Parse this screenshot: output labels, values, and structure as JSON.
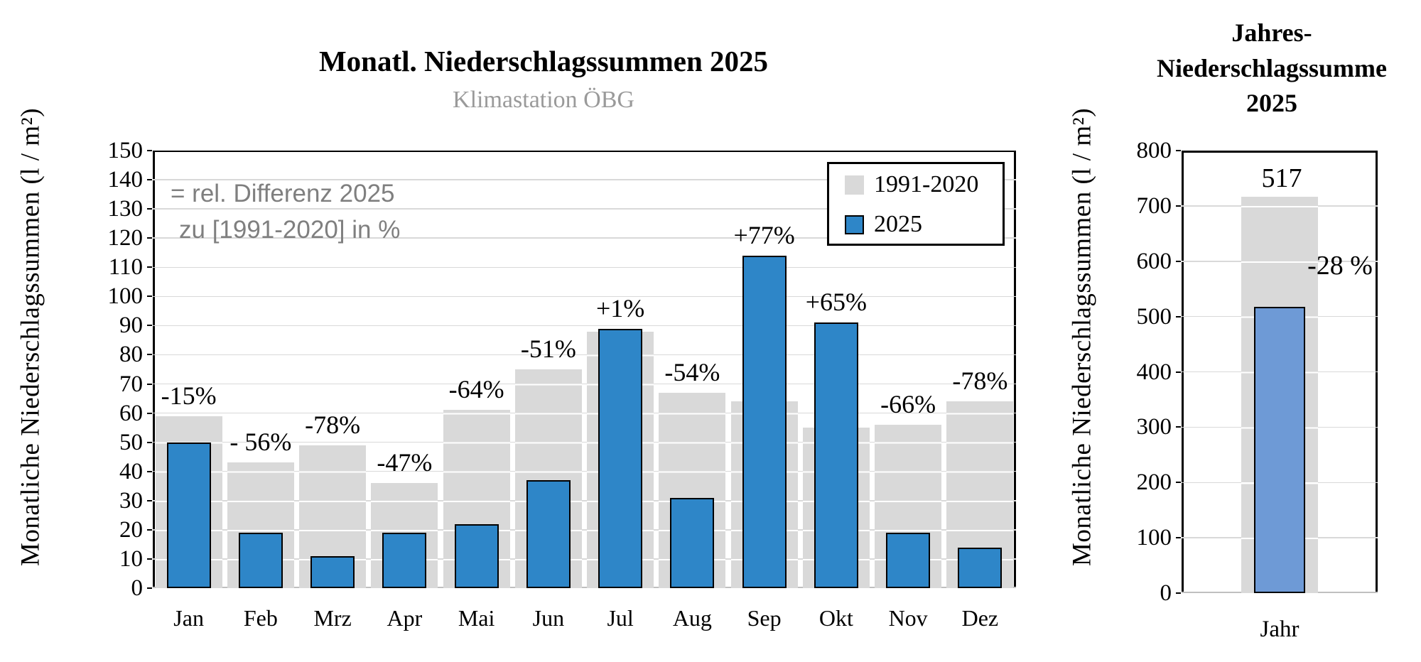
{
  "chart_data": [
    {
      "type": "bar",
      "title": "Monatl. Niederschlagssummen 2025",
      "subtitle": "Klimastation ÖBG",
      "ylabel": "Monatliche Niederschlagssummen  (l / m²)",
      "categories": [
        "Jan",
        "Feb",
        "Mrz",
        "Apr",
        "Mai",
        "Jun",
        "Jul",
        "Aug",
        "Sep",
        "Okt",
        "Nov",
        "Dez"
      ],
      "series": [
        {
          "name": "1991-2020",
          "color": "#d9d9d9",
          "values": [
            59,
            43,
            49,
            36,
            61,
            75,
            88,
            67,
            64,
            55,
            56,
            64
          ]
        },
        {
          "name": "2025",
          "color": "#2e86c8",
          "values": [
            50,
            19,
            11,
            19,
            22,
            37,
            89,
            31,
            114,
            91,
            19,
            14
          ]
        }
      ],
      "pct_labels": [
        "-15%",
        "- 56%",
        "-78%",
        "-47%",
        "-64%",
        "-51%",
        "+1%",
        "-54%",
        "+77%",
        "+65%",
        "-66%",
        "-78%"
      ],
      "annotation": [
        "= rel. Differenz 2025",
        "zu [1991-2020] in %"
      ],
      "ylim": [
        0,
        150
      ],
      "ytick_step": 10,
      "grid": true,
      "legend_position": "top-right"
    },
    {
      "type": "bar",
      "title_lines": [
        "Jahres-",
        "Niederschlagssumme",
        "2025"
      ],
      "ylabel": "Monatliche Niederschlagssummen  (l / m²)",
      "categories": [
        "Jahr"
      ],
      "series": [
        {
          "name": "1991-2020",
          "color": "#d9d9d9",
          "values": [
            717
          ]
        },
        {
          "name": "2025",
          "color": "#6e9ad6",
          "values": [
            517
          ]
        }
      ],
      "value_label": "517",
      "pct_label": "-28 %",
      "ylim": [
        0,
        800
      ],
      "ytick_step": 100,
      "grid": true,
      "legend_position": "none"
    }
  ]
}
